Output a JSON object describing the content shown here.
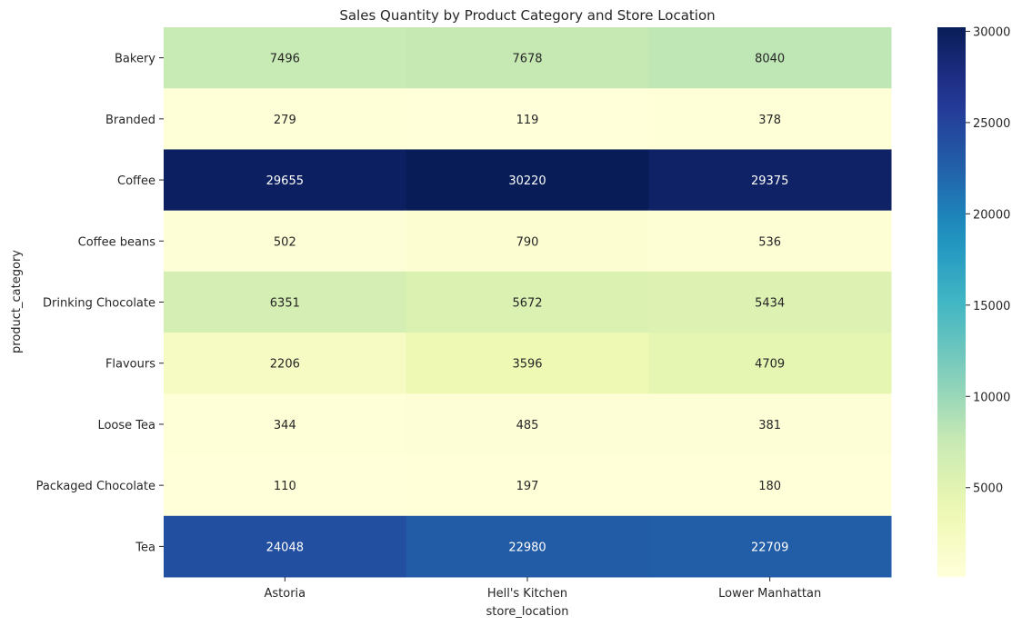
{
  "chart_data": {
    "type": "heatmap",
    "title": "Sales Quantity by Product Category and Store Location",
    "xlabel": "store_location",
    "ylabel": "product_category",
    "x_categories": [
      "Astoria",
      "Hell's Kitchen",
      "Lower Manhattan"
    ],
    "y_categories": [
      "Bakery",
      "Branded",
      "Coffee",
      "Coffee beans",
      "Drinking Chocolate",
      "Flavours",
      "Loose Tea",
      "Packaged Chocolate",
      "Tea"
    ],
    "values": [
      [
        7496,
        7678,
        8040
      ],
      [
        279,
        119,
        378
      ],
      [
        29655,
        30220,
        29375
      ],
      [
        502,
        790,
        536
      ],
      [
        6351,
        5672,
        5434
      ],
      [
        2206,
        3596,
        4709
      ],
      [
        344,
        485,
        381
      ],
      [
        110,
        197,
        180
      ],
      [
        24048,
        22980,
        22709
      ]
    ],
    "colormap": "YlGnBu",
    "colorbar": {
      "min": 110,
      "max": 30220,
      "ticks": [
        5000,
        10000,
        15000,
        20000,
        25000,
        30000
      ]
    },
    "annotations": true,
    "grid": false
  }
}
